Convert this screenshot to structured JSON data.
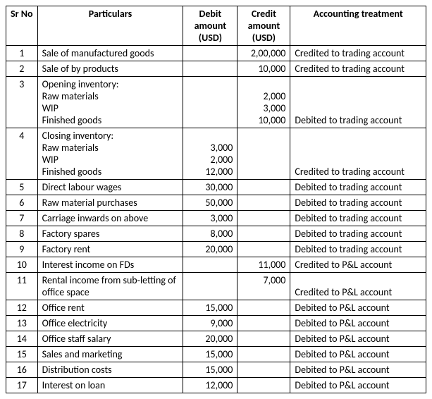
{
  "columns": {
    "sr_no": "Sr No",
    "particulars": "Particulars",
    "debit": "Debit amount (USD)",
    "credit": "Credit amount (USD)",
    "treatment": "Accounting treatment"
  },
  "rows": [
    {
      "sr": "1",
      "part": "Sale of manufactured goods",
      "debit": "",
      "credit": "2,00,000",
      "treat": "Credited to trading account"
    },
    {
      "sr": "2",
      "part": "Sale of by products",
      "debit": "",
      "credit": "10,000",
      "treat": "Credited to trading account"
    },
    {
      "sr": "3",
      "group_label": "Opening inventory:",
      "lines": [
        {
          "label": "Raw materials",
          "debit": "",
          "credit": "2,000"
        },
        {
          "label": "WIP",
          "debit": "",
          "credit": "3,000"
        },
        {
          "label": "Finished goods",
          "debit": "",
          "credit": "10,000"
        }
      ],
      "treat": "Debited to trading account"
    },
    {
      "sr": "4",
      "group_label": "Closing inventory:",
      "lines": [
        {
          "label": "Raw materials",
          "debit": "3,000",
          "credit": ""
        },
        {
          "label": "WIP",
          "debit": "2,000",
          "credit": ""
        },
        {
          "label": "Finished goods",
          "debit": "12,000",
          "credit": ""
        }
      ],
      "treat": "Credited to trading account"
    },
    {
      "sr": "5",
      "part": "Direct labour wages",
      "debit": "30,000",
      "credit": "",
      "treat": "Debited to trading account"
    },
    {
      "sr": "6",
      "part": "Raw material purchases",
      "debit": "50,000",
      "credit": "",
      "treat": "Debited to trading account"
    },
    {
      "sr": "7",
      "part": "Carriage inwards on above",
      "debit": "3,000",
      "credit": "",
      "treat": "Debited to trading account"
    },
    {
      "sr": "8",
      "part": "Factory spares",
      "debit": "8,000",
      "credit": "",
      "treat": "Debited to trading account"
    },
    {
      "sr": "9",
      "part": "Factory rent",
      "debit": "20,000",
      "credit": "",
      "treat": "Debited to trading account"
    },
    {
      "sr": "10",
      "part": "Interest income on FDs",
      "debit": "",
      "credit": "11,000",
      "treat": "Credited to P&L account"
    },
    {
      "sr": "11",
      "part": "Rental income from sub-letting of office space",
      "debit": "",
      "credit": "7,000",
      "treat": "Credited to P&L account"
    },
    {
      "sr": "12",
      "part": "Office rent",
      "debit": "15,000",
      "credit": "",
      "treat": "Debited to P&L account"
    },
    {
      "sr": "13",
      "part": "Office electricity",
      "debit": "9,000",
      "credit": "",
      "treat": "Debited to P&L account"
    },
    {
      "sr": "14",
      "part": "Office staff salary",
      "debit": "20,000",
      "credit": "",
      "treat": "Debited to P&L account"
    },
    {
      "sr": "15",
      "part": "Sales and marketing",
      "debit": "15,000",
      "credit": "",
      "treat": "Debited to P&L account"
    },
    {
      "sr": "16",
      "part": "Distribution costs",
      "debit": "15,000",
      "credit": "",
      "treat": "Debited to P&L account"
    },
    {
      "sr": "17",
      "part": "Interest on loan",
      "debit": "12,000",
      "credit": "",
      "treat": "Debited to P&L account"
    }
  ],
  "styling": {
    "font_family": "Calibri",
    "font_size_pt": 11,
    "border_color": "#000000",
    "background_color": "#ffffff",
    "text_color": "#000000"
  }
}
